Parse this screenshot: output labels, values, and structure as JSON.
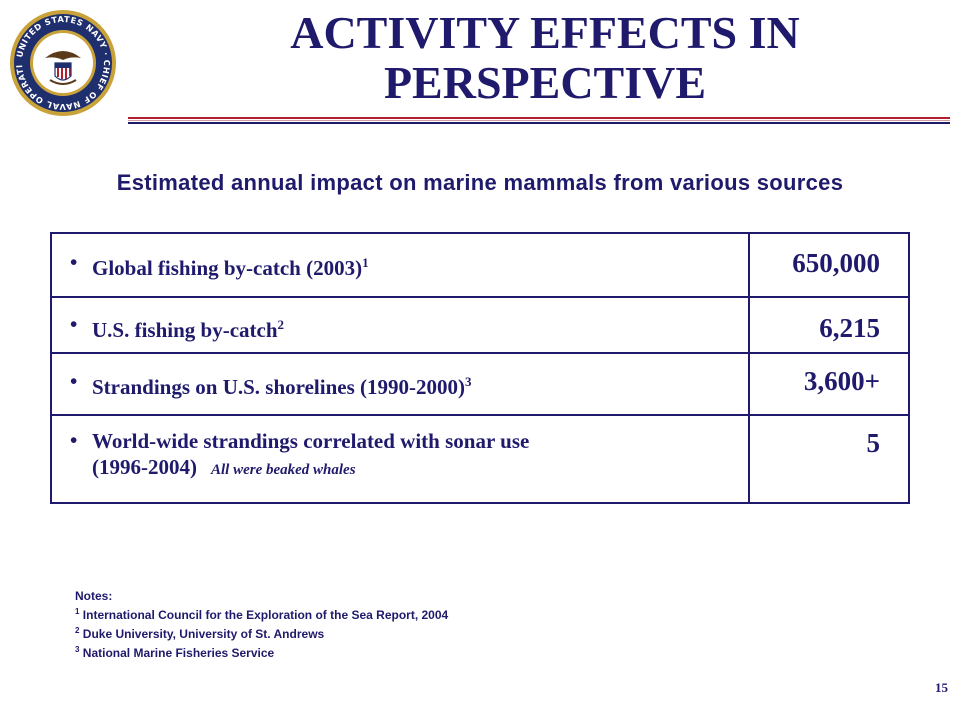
{
  "colors": {
    "navy": "#1f1a6b",
    "red_rule": "#b21f2d",
    "seal_gold": "#c9a33a",
    "seal_blue": "#1f2f6e"
  },
  "seal": {
    "icon": "navy-seal-icon",
    "text": "UNITED STATES NAVY · CHIEF OF NAVAL OPERATIONS"
  },
  "title": {
    "line1": "ACTIVITY EFFECTS IN",
    "line2": "PERSPECTIVE"
  },
  "subtitle": "Estimated annual impact on marine mammals from various sources",
  "rows": [
    {
      "bullet": "•",
      "label": "Global fishing by-catch (2003)",
      "sup": "1",
      "line2": "",
      "aside": "",
      "value": "650,000"
    },
    {
      "bullet": "•",
      "label": "U.S. fishing by-catch",
      "sup": "2",
      "line2": "",
      "aside": "",
      "value": "6,215"
    },
    {
      "bullet": "•",
      "label": "Strandings on U.S. shorelines (1990-2000)",
      "sup": "3",
      "line2": "",
      "aside": "",
      "value": "3,600+"
    },
    {
      "bullet": "•",
      "label": "World-wide strandings correlated with sonar use",
      "sup": "",
      "line2": "(1996-2004)",
      "aside": "All were beaked whales",
      "value": "5"
    }
  ],
  "notes": {
    "heading": "Notes:",
    "items": [
      {
        "num": "1",
        "text": "International Council for the Exploration of the Sea Report, 2004"
      },
      {
        "num": "2",
        "text": "Duke University, University of St. Andrews"
      },
      {
        "num": "3",
        "text": "National Marine Fisheries Service"
      }
    ]
  },
  "page_number": "15"
}
